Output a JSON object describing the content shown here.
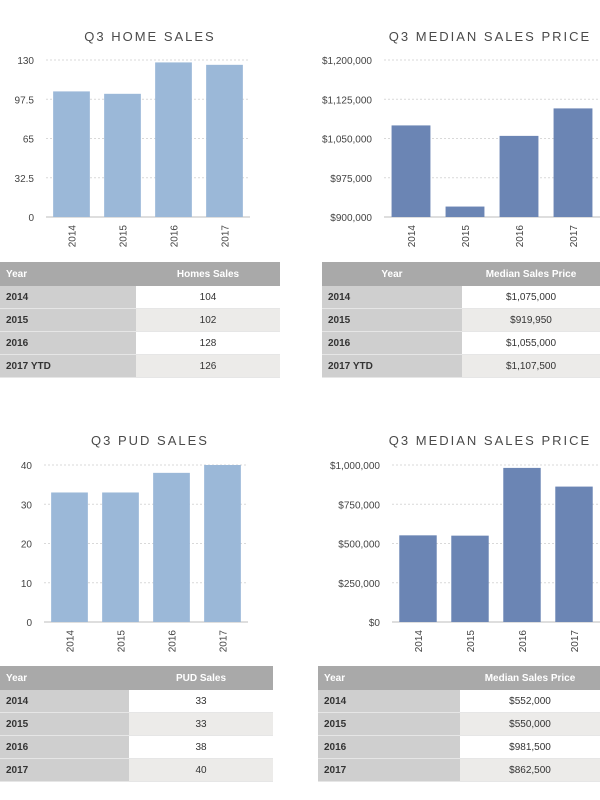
{
  "chart_data": [
    {
      "type": "bar",
      "title": "Q3 HOME SALES",
      "categories": [
        "2014",
        "2015",
        "2016",
        "2017"
      ],
      "values": [
        104,
        102,
        128,
        126
      ],
      "yticks": [
        "0",
        "32.5",
        "65",
        "97.5",
        "130"
      ],
      "ylim": [
        0,
        130
      ],
      "color": "#9bb8d8",
      "grid": true
    },
    {
      "type": "bar",
      "title": "Q3 MEDIAN SALES PRICE",
      "categories": [
        "2014",
        "2015",
        "2016",
        "2017"
      ],
      "values": [
        1075000,
        919950,
        1055000,
        1107500
      ],
      "yticks": [
        "$900,000",
        "$975,000",
        "$1,050,000",
        "$1,125,000",
        "$1,200,000"
      ],
      "ylim": [
        900000,
        1200000
      ],
      "color": "#6b85b4",
      "grid": true
    },
    {
      "type": "bar",
      "title": "Q3 PUD SALES",
      "categories": [
        "2014",
        "2015",
        "2016",
        "2017"
      ],
      "values": [
        33,
        33,
        38,
        40
      ],
      "yticks": [
        "0",
        "10",
        "20",
        "30",
        "40"
      ],
      "ylim": [
        0,
        40
      ],
      "color": "#9bb8d8",
      "grid": true
    },
    {
      "type": "bar",
      "title": "Q3 MEDIAN SALES PRICE",
      "categories": [
        "2014",
        "2015",
        "2016",
        "2017"
      ],
      "values": [
        552000,
        550000,
        981500,
        862500
      ],
      "yticks": [
        "$0",
        "$250,000",
        "$500,000",
        "$750,000",
        "$1,000,000"
      ],
      "ylim": [
        0,
        1000000
      ],
      "color": "#6b85b4",
      "grid": true
    }
  ],
  "tables": [
    {
      "headers": [
        "Year",
        "Homes Sales"
      ],
      "rows": [
        [
          "2014",
          "104"
        ],
        [
          "2015",
          "102"
        ],
        [
          "2016",
          "128"
        ],
        [
          "2017 YTD",
          "126"
        ]
      ]
    },
    {
      "headers": [
        "Year",
        "Median Sales Price"
      ],
      "rows": [
        [
          "2014",
          "$1,075,000"
        ],
        [
          "2015",
          "$919,950"
        ],
        [
          "2016",
          "$1,055,000"
        ],
        [
          "2017 YTD",
          "$1,107,500"
        ]
      ]
    },
    {
      "headers": [
        "Year",
        "PUD Sales"
      ],
      "rows": [
        [
          "2014",
          "33"
        ],
        [
          "2015",
          "33"
        ],
        [
          "2016",
          "38"
        ],
        [
          "2017",
          "40"
        ]
      ]
    },
    {
      "headers": [
        "Year",
        "Median Sales Price"
      ],
      "rows": [
        [
          "2014",
          "$552,000"
        ],
        [
          "2015",
          "$550,000"
        ],
        [
          "2016",
          "$981,500"
        ],
        [
          "2017",
          "$862,500"
        ]
      ]
    }
  ]
}
